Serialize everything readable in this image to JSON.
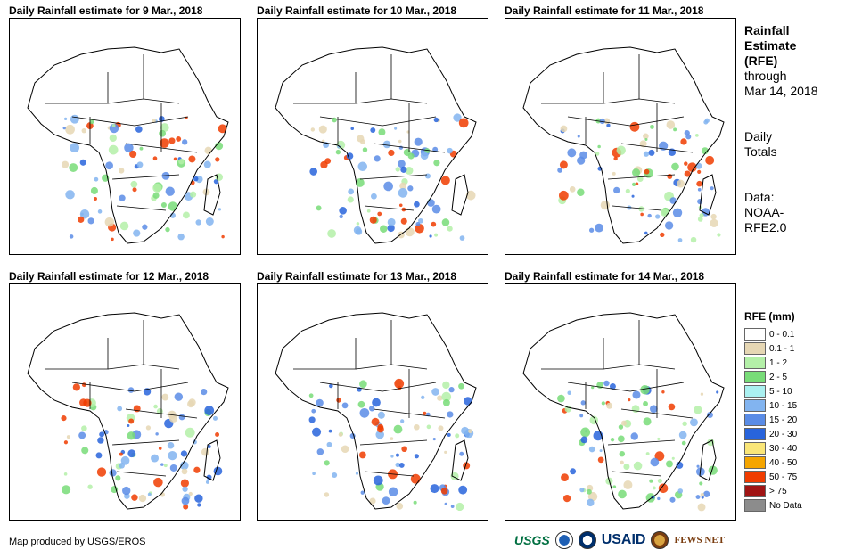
{
  "panels": [
    {
      "title": "Daily Rainfall estimate for 9 Mar., 2018"
    },
    {
      "title": "Daily Rainfall estimate for 10 Mar., 2018"
    },
    {
      "title": "Daily Rainfall estimate for 11 Mar., 2018"
    },
    {
      "title": "Daily Rainfall estimate for 12 Mar., 2018"
    },
    {
      "title": "Daily Rainfall estimate for 13 Mar., 2018"
    },
    {
      "title": "Daily Rainfall estimate for 14 Mar., 2018"
    }
  ],
  "sidebar": {
    "title_line1": "Rainfall",
    "title_line2": "Estimate",
    "title_line3": "(RFE)",
    "through": "through",
    "date": "Mar 14, 2018",
    "daily1": "Daily",
    "daily2": "Totals",
    "data1": "Data:",
    "data2": "NOAA-",
    "data3": "RFE2.0"
  },
  "legend": {
    "title": "RFE (mm)",
    "items": [
      {
        "label": "0 - 0.1",
        "color": "#ffffff"
      },
      {
        "label": "0.1 - 1",
        "color": "#e6d7b4"
      },
      {
        "label": "1 - 2",
        "color": "#b4f0a8"
      },
      {
        "label": "2 - 5",
        "color": "#78dc78"
      },
      {
        "label": "5 - 10",
        "color": "#aaf0f0"
      },
      {
        "label": "10 - 15",
        "color": "#82b4f0"
      },
      {
        "label": "15 - 20",
        "color": "#5a8ce6"
      },
      {
        "label": "20 - 30",
        "color": "#2864dc"
      },
      {
        "label": "30 - 40",
        "color": "#fae678"
      },
      {
        "label": "40 - 50",
        "color": "#f5a500"
      },
      {
        "label": "50 - 75",
        "color": "#f03c00"
      },
      {
        "label": "> 75",
        "color": "#a01414"
      },
      {
        "label": "No Data",
        "color": "#8c8c8c"
      }
    ]
  },
  "footer": {
    "credit": "Map produced by USGS/EROS"
  },
  "logos": {
    "usgs": "USGS",
    "usaid": "USAID",
    "fews": "FEWS NET"
  }
}
